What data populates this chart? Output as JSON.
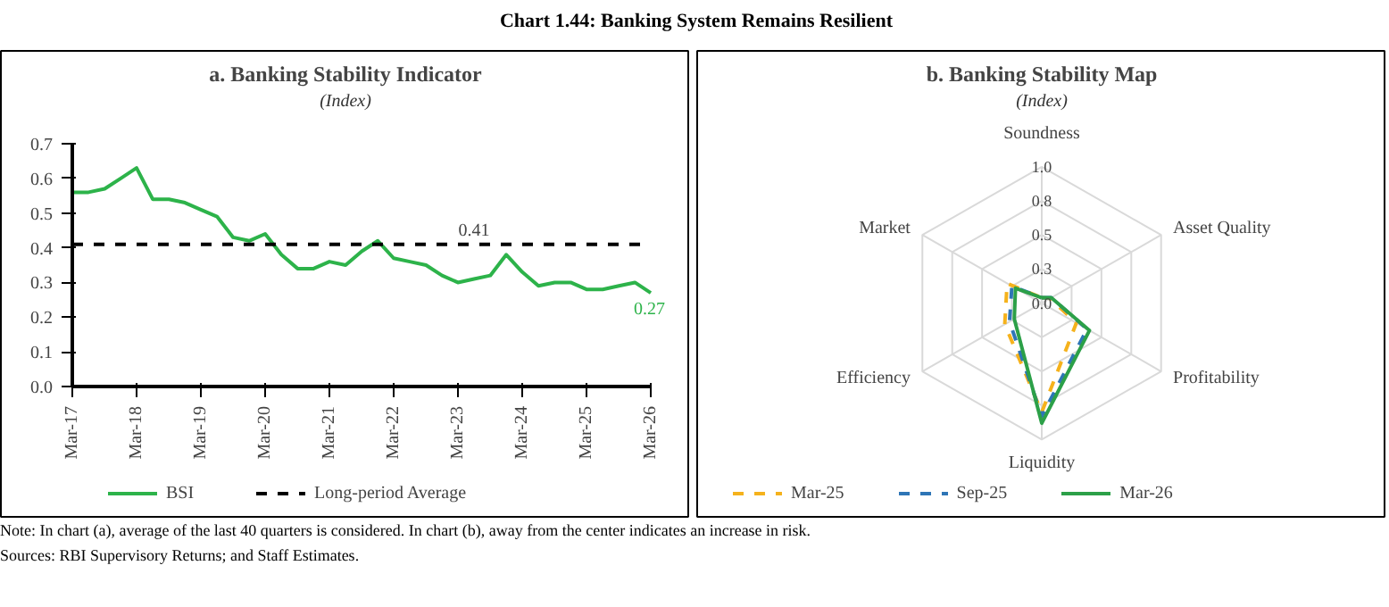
{
  "chart_data": [
    {
      "type": "line",
      "title": "a. Banking Stability Indicator",
      "subtitle": "(Index)",
      "x": [
        "2017-03",
        "2017-06",
        "2017-09",
        "2017-12",
        "2018-03",
        "2018-06",
        "2018-09",
        "2018-12",
        "2019-03",
        "2019-06",
        "2019-09",
        "2019-12",
        "2020-03",
        "2020-06",
        "2020-09",
        "2020-12",
        "2021-03",
        "2021-06",
        "2021-09",
        "2021-12",
        "2022-03",
        "2022-06",
        "2022-09",
        "2022-12",
        "2023-03",
        "2023-06",
        "2023-09",
        "2023-12",
        "2024-03",
        "2024-06",
        "2024-09",
        "2024-12",
        "2025-03",
        "2025-06",
        "2025-09",
        "2025-12",
        "2026-03"
      ],
      "series": [
        {
          "name": "BSI",
          "color": "#2db34a",
          "values": [
            0.56,
            0.56,
            0.57,
            0.6,
            0.63,
            0.54,
            0.54,
            0.53,
            0.51,
            0.49,
            0.43,
            0.42,
            0.44,
            0.38,
            0.34,
            0.34,
            0.36,
            0.35,
            0.39,
            0.42,
            0.37,
            0.36,
            0.35,
            0.32,
            0.3,
            0.31,
            0.32,
            0.38,
            0.33,
            0.29,
            0.3,
            0.3,
            0.28,
            0.28,
            0.29,
            0.3,
            0.27
          ],
          "value_labels": [
            null,
            null,
            null,
            null,
            null,
            null,
            null,
            null,
            null,
            null,
            null,
            null,
            null,
            null,
            null,
            null,
            null,
            null,
            null,
            null,
            null,
            null,
            null,
            null,
            null,
            null,
            null,
            null,
            null,
            null,
            null,
            null,
            null,
            null,
            null,
            null,
            "0.27"
          ]
        },
        {
          "name": "Long-period Average",
          "type": "line",
          "line_style": "dashed",
          "color": "#000000",
          "x": [
            "2017-03",
            "2026-03"
          ],
          "values": [
            0.41,
            0.41
          ]
        }
      ],
      "annotations": [
        {
          "text": "0.41",
          "x": "2023-06",
          "y": 0.41
        }
      ],
      "ylim": [
        0,
        0.7
      ],
      "yticks": [
        {
          "value": 0,
          "label": "0.0"
        },
        0.1,
        0.2,
        0.3,
        0.4,
        0.5,
        0.6,
        0.7
      ],
      "xlim": [
        "2017-03",
        "2026-03"
      ],
      "xticks": [
        {
          "value": "2017-03",
          "label": "Mar-17"
        },
        {
          "value": "2018-03",
          "label": "Mar-18"
        },
        {
          "value": "2019-03",
          "label": "Mar-19"
        },
        {
          "value": "2020-03",
          "label": "Mar-20"
        },
        {
          "value": "2021-03",
          "label": "Mar-21"
        },
        {
          "value": "2022-03",
          "label": "Mar-22"
        },
        {
          "value": "2023-03",
          "label": "Mar-23"
        },
        {
          "value": "2024-03",
          "label": "Mar-24"
        },
        {
          "value": "2025-03",
          "label": "Mar-25"
        },
        {
          "value": "2026-03",
          "label": "Mar-26"
        }
      ],
      "grid": false,
      "legend": "bottom",
      "marker": "none",
      "line_style": "solid"
    },
    {
      "type": "radar",
      "title": "b. Banking Stability Map",
      "subtitle": "(Index)",
      "categories": [
        "Soundness",
        "Asset Quality",
        "Profitability",
        "Liquidity",
        "Efficiency",
        "Market"
      ],
      "series": [
        {
          "name": "Mar-25",
          "color": "#f5b21c",
          "line_style": "dashed",
          "values": [
            0.04,
            0.07,
            0.29,
            0.8,
            0.31,
            0.29
          ]
        },
        {
          "name": "Sep-25",
          "color": "#2e75b6",
          "line_style": "dashed",
          "values": [
            0.04,
            0.08,
            0.38,
            0.83,
            0.27,
            0.25
          ]
        },
        {
          "name": "Mar-26",
          "color": "#2ca048",
          "line_style": "solid",
          "values": [
            0.04,
            0.08,
            0.4,
            0.88,
            0.23,
            0.22
          ]
        }
      ],
      "ylim": [
        0,
        1
      ],
      "yticks": [
        {
          "value": 0,
          "label": "0.0"
        },
        {
          "value": 0.25,
          "label": "0.3"
        },
        {
          "value": 0.5,
          "label": "0.5"
        },
        {
          "value": 0.75,
          "label": "0.8"
        },
        {
          "value": 1,
          "label": "1.0"
        }
      ],
      "legend": "bottom",
      "marker": "none"
    },
    {
      "type": "other",
      "title": "Chart 1.44: Banking System Remains Resilient",
      "annotations": [
        "Note: In chart (a), average of the last 40 quarters is considered. In chart (b), away from the center indicates an increase in risk.",
        "Sources: RBI Supervisory Returns; and Staff Estimates."
      ]
    }
  ]
}
